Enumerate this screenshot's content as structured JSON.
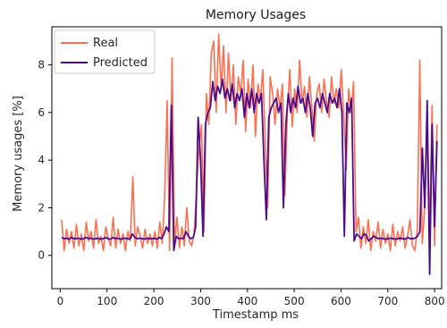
{
  "chart_data": {
    "type": "line",
    "title": "Memory Usages",
    "xlabel": "Timestamp ms",
    "ylabel": "Memory usages [%]",
    "xlim": [
      -18,
      815
    ],
    "ylim": [
      -1.4,
      9.6
    ],
    "xticks": [
      0,
      100,
      200,
      300,
      400,
      500,
      600,
      700,
      800
    ],
    "yticks": [
      0,
      2,
      4,
      6,
      8
    ],
    "grid": false,
    "legend": "upper-left",
    "series": [
      {
        "name": "Real",
        "color": "#ff6f4f",
        "values": [
          1.5,
          0.2,
          1.1,
          0.5,
          1.0,
          0.3,
          1.3,
          0.4,
          0.9,
          0.2,
          1.4,
          0.6,
          1.0,
          0.3,
          1.5,
          0.5,
          0.8,
          0.2,
          1.2,
          0.7,
          0.4,
          1.6,
          0.3,
          1.1,
          0.5,
          0.9,
          0.2,
          1.0,
          0.6,
          3.3,
          0.4,
          1.2,
          0.8,
          0.3,
          1.1,
          0.5,
          0.9,
          0.4,
          1.0,
          0.3,
          1.4,
          0.5,
          2.5,
          6.5,
          0.2,
          8.3,
          0.5,
          1.6,
          0.3,
          1.2,
          0.4,
          2.0,
          0.6,
          0.4,
          0.9,
          2.8,
          4.5,
          5.5,
          1.0,
          6.8,
          5.5,
          8.5,
          9.0,
          6.0,
          9.3,
          7.0,
          8.8,
          6.0,
          8.5,
          6.5,
          8.0,
          5.5,
          7.5,
          6.8,
          8.2,
          5.2,
          7.4,
          6.2,
          8.0,
          5.0,
          7.2,
          6.5,
          7.8,
          4.8,
          2.0,
          7.5,
          6.8,
          5.5,
          7.0,
          6.2,
          7.2,
          2.5,
          6.0,
          7.8,
          5.4,
          7.0,
          6.0,
          8.2,
          6.4,
          7.1,
          5.8,
          7.5,
          6.2,
          4.8,
          6.8,
          7.2,
          6.0,
          7.4,
          6.4,
          5.8,
          7.5,
          6.4,
          7.0,
          6.2,
          7.8,
          5.8,
          3.6,
          7.0,
          6.0,
          7.3,
          1.0,
          1.6,
          0.3,
          1.2,
          0.5,
          1.5,
          0.2,
          1.0,
          0.6,
          1.4,
          0.3,
          1.1,
          0.5,
          0.9,
          0.2,
          1.3,
          0.4,
          1.0,
          0.6,
          1.2,
          0.3,
          0.8,
          1.5,
          0.4,
          0.2,
          1.1,
          8.2,
          0.5,
          2.0,
          5.2,
          1.0,
          6.3,
          0.4,
          5.5
        ]
      },
      {
        "name": "Predicted",
        "color": "#4b0c8c",
        "values": [
          0.75,
          0.7,
          0.72,
          0.68,
          0.75,
          0.7,
          0.7,
          0.72,
          0.68,
          0.7,
          0.75,
          0.7,
          0.72,
          0.68,
          0.7,
          0.72,
          0.68,
          0.7,
          0.75,
          0.7,
          0.68,
          0.75,
          0.7,
          0.72,
          0.68,
          0.7,
          0.72,
          0.7,
          0.68,
          0.9,
          0.75,
          0.7,
          0.72,
          0.7,
          0.68,
          0.72,
          0.7,
          0.7,
          0.72,
          0.68,
          0.75,
          0.7,
          0.9,
          1.2,
          1.0,
          6.3,
          0.2,
          0.8,
          0.7,
          0.72,
          0.7,
          1.0,
          0.8,
          0.7,
          0.75,
          1.2,
          5.8,
          4.0,
          0.8,
          5.5,
          6.0,
          6.2,
          7.3,
          6.5,
          7.1,
          6.8,
          7.4,
          6.6,
          7.0,
          6.5,
          7.2,
          6.2,
          6.8,
          6.5,
          7.0,
          5.8,
          6.8,
          6.2,
          7.0,
          6.0,
          6.8,
          6.4,
          6.8,
          4.0,
          1.5,
          5.8,
          6.2,
          6.4,
          6.6,
          6.0,
          6.4,
          2.0,
          5.5,
          6.8,
          6.0,
          6.6,
          6.2,
          7.1,
          6.4,
          6.6,
          6.0,
          6.8,
          6.2,
          5.0,
          6.4,
          6.6,
          6.2,
          6.8,
          6.4,
          6.0,
          6.8,
          6.4,
          6.6,
          6.2,
          7.0,
          6.0,
          0.8,
          6.4,
          6.0,
          6.6,
          0.6,
          0.9,
          0.8,
          0.7,
          0.9,
          0.85,
          0.6,
          0.7,
          0.8,
          0.75,
          0.7,
          0.72,
          0.7,
          0.68,
          0.7,
          0.72,
          0.7,
          0.68,
          0.7,
          0.72,
          0.7,
          0.68,
          0.75,
          0.7,
          0.7,
          0.72,
          0.8,
          1.0,
          4.5,
          2.0,
          6.5,
          -0.8,
          5.5,
          1.2,
          4.8
        ]
      }
    ]
  }
}
